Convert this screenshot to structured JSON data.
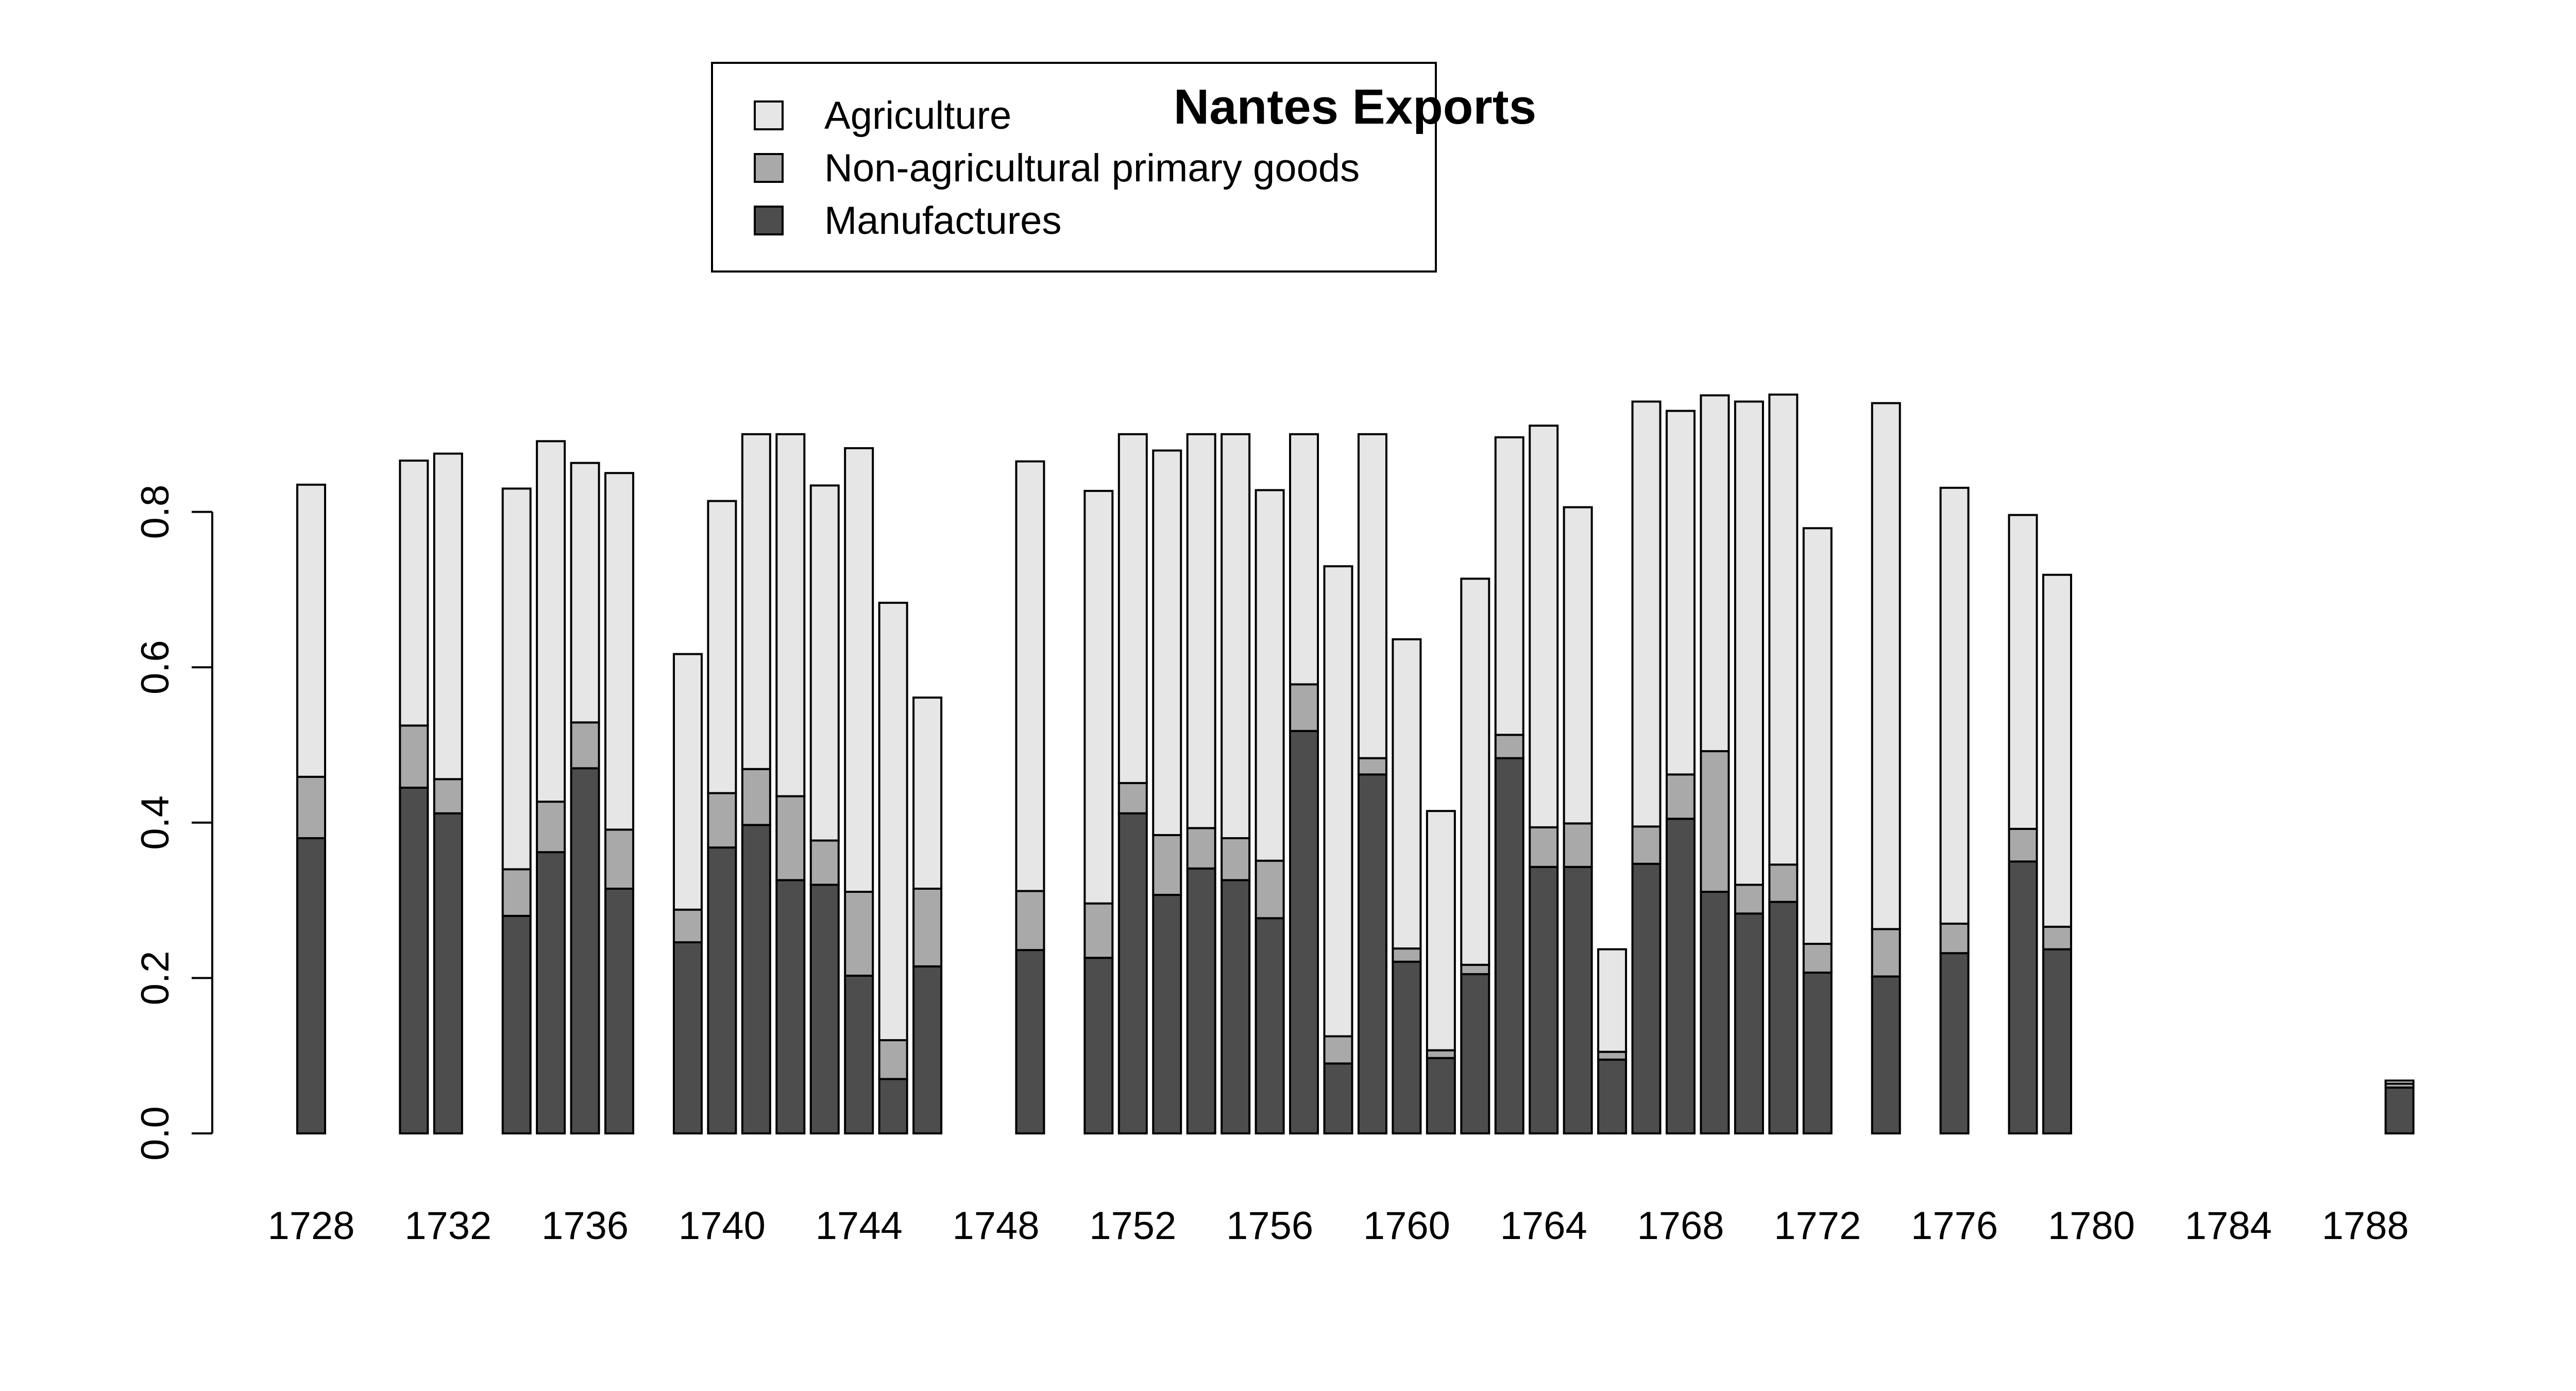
{
  "chart_data": {
    "type": "bar",
    "stacked": true,
    "title": "Nantes Exports",
    "xlabel": "",
    "ylabel": "",
    "ylim": [
      0,
      1.0
    ],
    "yticks": [
      "0.0",
      "0.2",
      "0.4",
      "0.6",
      "0.8"
    ],
    "xticks": [
      "1728",
      "1732",
      "1736",
      "1740",
      "1744",
      "1748",
      "1752",
      "1756",
      "1760",
      "1764",
      "1768",
      "1772",
      "1776",
      "1780",
      "1784",
      "1788"
    ],
    "grid": false,
    "legend_position": "top-center",
    "categories": [
      1728,
      1729,
      1730,
      1731,
      1732,
      1733,
      1734,
      1735,
      1736,
      1737,
      1738,
      1739,
      1740,
      1741,
      1742,
      1743,
      1744,
      1745,
      1746,
      1747,
      1748,
      1749,
      1750,
      1751,
      1752,
      1753,
      1754,
      1755,
      1756,
      1757,
      1758,
      1759,
      1760,
      1761,
      1762,
      1763,
      1764,
      1765,
      1766,
      1767,
      1768,
      1769,
      1770,
      1771,
      1772,
      1773,
      1774,
      1775,
      1776,
      1777,
      1778,
      1779,
      1780,
      1781,
      1782,
      1783,
      1784,
      1785,
      1786,
      1787,
      1788,
      1789
    ],
    "series": [
      {
        "name": "Manufactures",
        "color": "#4d4d4d",
        "values": [
          0.38,
          null,
          null,
          0.445,
          0.412,
          null,
          0.28,
          0.362,
          0.47,
          0.315,
          null,
          0.246,
          0.368,
          0.397,
          0.326,
          0.32,
          0.203,
          0.07,
          0.215,
          null,
          null,
          0.236,
          null,
          0.226,
          0.412,
          0.307,
          0.341,
          0.326,
          0.277,
          0.518,
          0.09,
          0.462,
          0.221,
          0.097,
          0.205,
          0.483,
          0.343,
          0.343,
          0.095,
          0.347,
          0.405,
          0.311,
          0.283,
          0.298,
          0.207,
          null,
          0.202,
          null,
          0.232,
          null,
          0.35,
          0.237,
          null,
          null,
          null,
          null,
          null,
          null,
          null,
          null,
          null,
          0.059
        ]
      },
      {
        "name": "Non-agricultural primary goods",
        "color": "#a9a9a9",
        "values": [
          0.079,
          null,
          null,
          0.08,
          0.044,
          null,
          0.06,
          0.065,
          0.059,
          0.076,
          null,
          0.042,
          0.07,
          0.072,
          0.108,
          0.057,
          0.108,
          0.05,
          0.1,
          null,
          null,
          0.076,
          null,
          0.07,
          0.039,
          0.077,
          0.052,
          0.054,
          0.074,
          0.06,
          0.035,
          0.021,
          0.017,
          0.01,
          0.012,
          0.03,
          0.051,
          0.056,
          0.01,
          0.048,
          0.057,
          0.181,
          0.037,
          0.048,
          0.037,
          null,
          0.061,
          null,
          0.038,
          null,
          0.042,
          0.029,
          null,
          null,
          null,
          null,
          null,
          null,
          null,
          null,
          null,
          0.005
        ]
      },
      {
        "name": "Agriculture",
        "color": "#e6e6e6",
        "values": [
          0.376,
          null,
          null,
          0.341,
          0.419,
          null,
          0.49,
          0.464,
          0.334,
          0.459,
          null,
          0.329,
          0.376,
          0.431,
          0.466,
          0.457,
          0.571,
          0.563,
          0.246,
          null,
          null,
          0.553,
          null,
          0.531,
          0.449,
          0.495,
          0.507,
          0.52,
          0.477,
          0.322,
          0.605,
          0.417,
          0.398,
          0.308,
          0.497,
          0.383,
          0.517,
          0.407,
          0.132,
          0.547,
          0.468,
          0.458,
          0.622,
          0.605,
          0.535,
          null,
          0.677,
          null,
          0.561,
          null,
          0.404,
          0.453,
          null,
          null,
          null,
          null,
          null,
          null,
          null,
          null,
          null,
          0.004
        ]
      }
    ]
  }
}
